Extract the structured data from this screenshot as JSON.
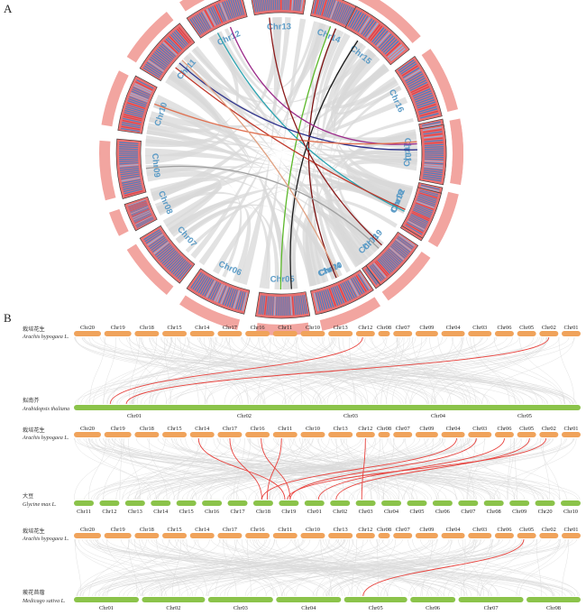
{
  "panels": {
    "a": "A",
    "b": "B"
  },
  "circos": {
    "chromosomes": [
      "Chr01",
      "Chr02",
      "Chr03",
      "Chr04",
      "Chr05",
      "Chr06",
      "Chr07",
      "Chr08",
      "Chr09",
      "Chr10",
      "Chr11",
      "Chr12",
      "Chr13",
      "Chr14",
      "Chr15",
      "Chr16",
      "Chr17",
      "Chr18",
      "Chr19",
      "Chr20"
    ],
    "colors": {
      "ideogram": "#e87070",
      "density_low": "#4a7fc4",
      "density_high": "#d9434b",
      "outer_track": "#f2a5a0",
      "background_links": "#d8d8d8",
      "label": "#5b9bc6"
    },
    "highlight_links": [
      {
        "from": "Chr15",
        "to": "Chr05",
        "color": "#1a1a1a"
      },
      {
        "from": "Chr14",
        "to": "Chr04",
        "color": "#7a1010"
      },
      {
        "from": "Chr14",
        "to": "Chr05",
        "color": "#5cb82a"
      },
      {
        "from": "Chr12",
        "to": "Chr02",
        "color": "#2aa3b0"
      },
      {
        "from": "Chr12",
        "to": "Chr01",
        "color": "#9b2b8a"
      },
      {
        "from": "Chr11",
        "to": "Chr01",
        "color": "#2b2f8a"
      },
      {
        "from": "Chr11",
        "to": "Chr02",
        "color": "#c0392b"
      },
      {
        "from": "Chr10",
        "to": "Chr01",
        "color": "#e07050"
      },
      {
        "from": "Chr19",
        "to": "Chr09",
        "color": "#a0a0a0"
      },
      {
        "from": "Chr20",
        "to": "Chr11",
        "color": "#e0a080"
      },
      {
        "from": "Chr13",
        "to": "Chr03",
        "color": "#8b1a1a"
      }
    ]
  },
  "synteny": {
    "reference": {
      "name_cn": "栽培花生",
      "name_lat": "Arachis hypogaea L.",
      "chromosomes": [
        "Chr20",
        "Chr19",
        "Chr18",
        "Chr15",
        "Chr14",
        "Chr17",
        "Chr16",
        "Chr11",
        "Chr10",
        "Chr13",
        "Chr12",
        "Chr08",
        "Chr07",
        "Chr09",
        "Chr04",
        "Chr03",
        "Chr06",
        "Chr05",
        "Chr02",
        "Chr01"
      ],
      "color": "#f0a35b"
    },
    "comparisons": [
      {
        "name_cn": "拟南芥",
        "name_lat": "Arabidopsis thaliana",
        "color": "#8bc34a",
        "chromosomes": [
          "Chr01",
          "Chr02",
          "Chr03",
          "Chr04",
          "Chr05"
        ],
        "links": [
          {
            "ref": "Chr12",
            "target": "Chr01"
          },
          {
            "ref": "Chr02",
            "target": "Chr01"
          }
        ]
      },
      {
        "name_cn": "大豆",
        "name_lat": "Glycine max L.",
        "color": "#8bc34a",
        "chromosomes": [
          "Chr11",
          "Chr12",
          "Chr13",
          "Chr14",
          "Chr15",
          "Chr16",
          "Chr17",
          "Chr18",
          "Chr19",
          "Chr01",
          "Chr02",
          "Chr03",
          "Chr04",
          "Chr05",
          "Chr06",
          "Chr07",
          "Chr08",
          "Chr09",
          "Chr20",
          "Chr10"
        ],
        "links": [
          {
            "ref": "Chr14",
            "target": "Chr19"
          },
          {
            "ref": "Chr17",
            "target": "Chr18"
          },
          {
            "ref": "Chr16",
            "target": "Chr19"
          },
          {
            "ref": "Chr11",
            "target": "Chr18"
          },
          {
            "ref": "Chr12",
            "target": "Chr03"
          },
          {
            "ref": "Chr04",
            "target": "Chr18"
          },
          {
            "ref": "Chr03",
            "target": "Chr19"
          },
          {
            "ref": "Chr06",
            "target": "Chr01"
          },
          {
            "ref": "Chr05",
            "target": "Chr02"
          },
          {
            "ref": "Chr02",
            "target": "Chr19"
          }
        ]
      },
      {
        "name_cn": "蒺花苜蓿",
        "name_lat": "Medicago sativa L.",
        "color": "#8bc34a",
        "chromosomes": [
          "Chr01",
          "Chr02",
          "Chr03",
          "Chr04",
          "Chr05",
          "Chr06",
          "Chr07",
          "Chr08"
        ],
        "links": [
          {
            "ref": "Chr05",
            "target": "Chr05"
          }
        ]
      }
    ],
    "colors": {
      "background_links": "#d9d9d9",
      "highlight_links": "#e8413c"
    }
  }
}
